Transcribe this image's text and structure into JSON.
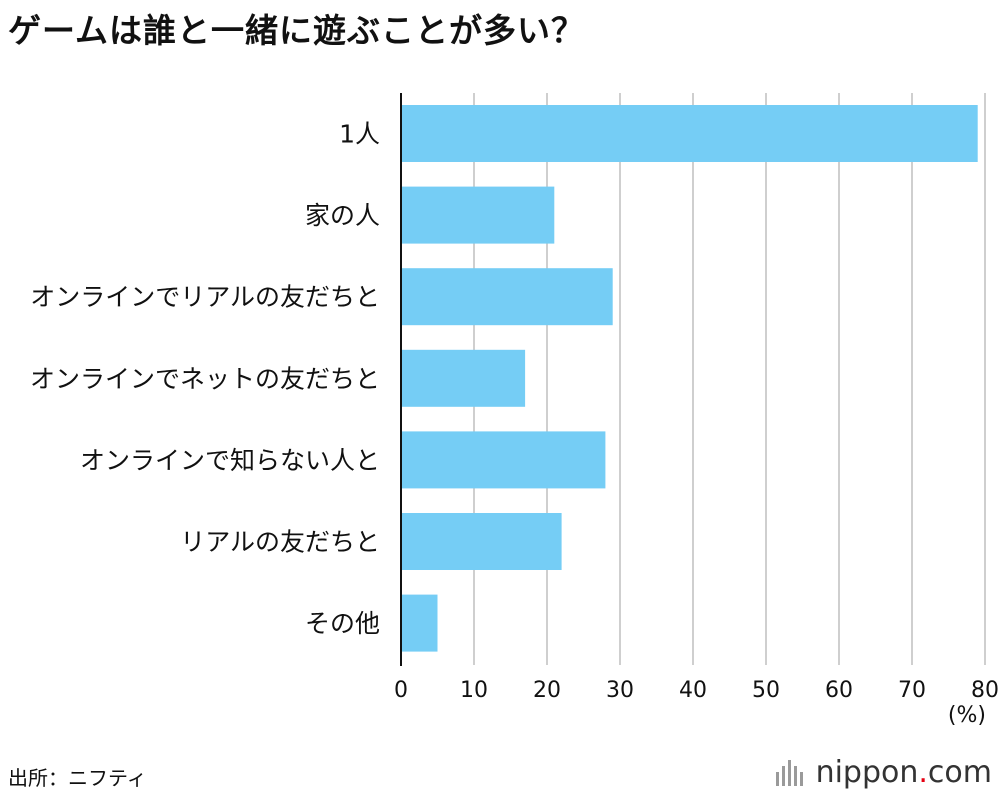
{
  "chart_data": {
    "type": "bar",
    "orientation": "horizontal",
    "title": "ゲームは誰と一緒に遊ぶことが多い？",
    "categories": [
      "1人",
      "家の人",
      "オンラインでリアルの友だちと",
      "オンラインでネットの友だちと",
      "オンラインで知らない人と",
      "リアルの友だちと",
      "その他"
    ],
    "values": [
      79,
      21,
      29,
      17,
      28,
      22,
      5
    ],
    "xlim": [
      0,
      80
    ],
    "xticks": [
      0,
      10,
      20,
      30,
      40,
      50,
      60,
      70,
      80
    ],
    "xlabel": "(%)",
    "ylabel": "",
    "grid": true,
    "bar_color": "#75cdf5"
  },
  "source": "出所：ニフティ",
  "brand": {
    "name": "nippon",
    "dot": ".",
    "suffix": "com"
  }
}
